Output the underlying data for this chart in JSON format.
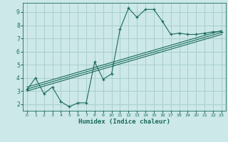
{
  "bg_color": "#cce8e8",
  "line_color": "#1a6b5a",
  "grid_color": "#aacece",
  "xlabel": "Humidex (Indice chaleur)",
  "xlim": [
    -0.5,
    23.5
  ],
  "ylim": [
    1.5,
    9.7
  ],
  "xticks": [
    0,
    1,
    2,
    3,
    4,
    5,
    6,
    7,
    8,
    9,
    10,
    11,
    12,
    13,
    14,
    15,
    16,
    17,
    18,
    19,
    20,
    21,
    22,
    23
  ],
  "yticks": [
    2,
    3,
    4,
    5,
    6,
    7,
    8,
    9
  ],
  "main_x": [
    0,
    1,
    2,
    3,
    4,
    5,
    6,
    7,
    8,
    9,
    10,
    11,
    12,
    13,
    14,
    15,
    16,
    17,
    18,
    19,
    20,
    21,
    22,
    23
  ],
  "main_y": [
    3.1,
    4.0,
    2.8,
    3.3,
    2.2,
    1.8,
    2.1,
    2.1,
    5.2,
    3.9,
    4.3,
    7.7,
    9.3,
    8.6,
    9.2,
    9.2,
    8.3,
    7.3,
    7.4,
    7.3,
    7.3,
    7.4,
    7.5,
    7.5
  ],
  "line1_x": [
    0,
    23
  ],
  "line1_y": [
    3.15,
    7.45
  ],
  "line2_x": [
    0,
    23
  ],
  "line2_y": [
    3.0,
    7.3
  ],
  "line3_x": [
    0,
    23
  ],
  "line3_y": [
    3.3,
    7.6
  ]
}
